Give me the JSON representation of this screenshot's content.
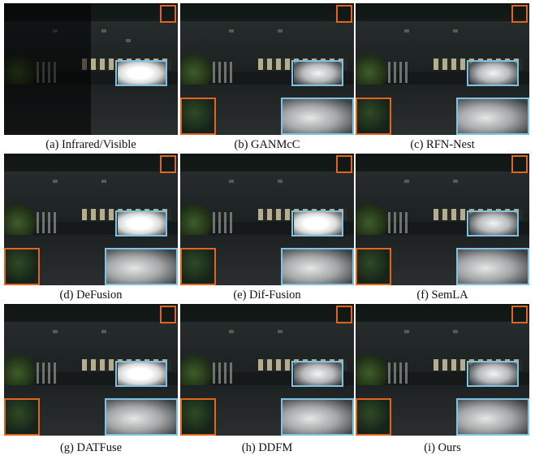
{
  "panels": [
    {
      "caption": "(a) Infrared/Visible"
    },
    {
      "caption": "(b) GANMcC"
    },
    {
      "caption": "(c) RFN-Nest"
    },
    {
      "caption": "(d) DeFusion"
    },
    {
      "caption": "(e) Dif-Fusion"
    },
    {
      "caption": "(f) SemLA"
    },
    {
      "caption": "(g) DATFuse"
    },
    {
      "caption": "(h) DDFM"
    },
    {
      "caption": "(i) Ours"
    }
  ],
  "colors": {
    "zoom_orange": "#e2651f",
    "zoom_blue": "#7ec2e4"
  }
}
